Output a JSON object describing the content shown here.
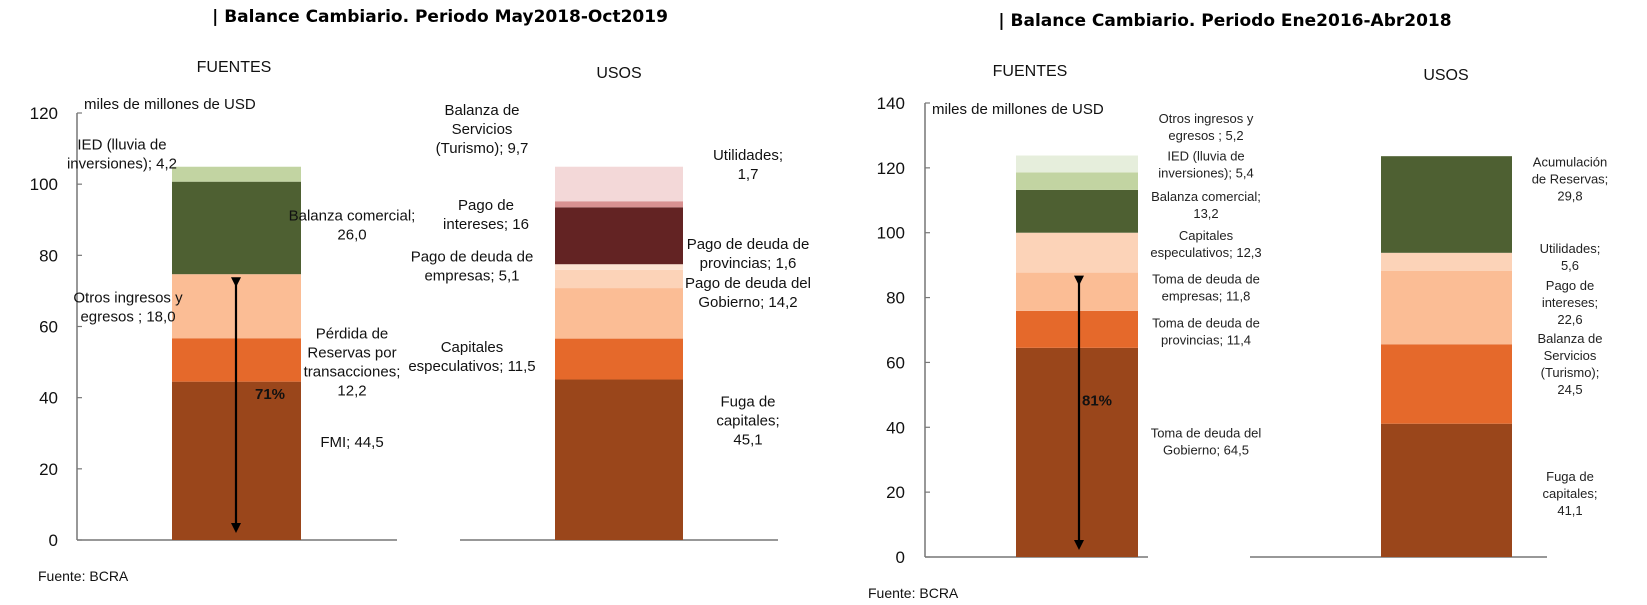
{
  "chart_data": [
    {
      "type": "bar",
      "stacked": true,
      "title": "| Balance Cambiario. Periodo May2018-Oct2019",
      "ylabel": "miles de millones de USD",
      "ylim": [
        0,
        120
      ],
      "yticks": [
        "0",
        "20",
        "40",
        "60",
        "80",
        "100",
        "120"
      ],
      "source": "Fuente: BCRA",
      "bars": [
        {
          "name": "FUENTES",
          "arrow_annotation": "71%",
          "segments": [
            {
              "label": [
                "FMI; 44,5"
              ],
              "value": 44.5,
              "color": "#9a461b"
            },
            {
              "label": [
                "Pérdida de",
                "Reservas por",
                "transacciones;",
                "12,2"
              ],
              "value": 12.2,
              "color": "#e5692b"
            },
            {
              "label": [
                "Otros ingresos y",
                "egresos ; 18,0"
              ],
              "value": 18.0,
              "color": "#fbbd95"
            },
            {
              "label": [
                "Balanza comercial;",
                "26,0"
              ],
              "value": 26.0,
              "color": "#4e6032"
            },
            {
              "label": [
                "IED (lluvia de",
                "inversiones); 4,2"
              ],
              "value": 4.2,
              "color": "#c2d4a2"
            }
          ]
        },
        {
          "name": "USOS",
          "segments": [
            {
              "label": [
                "Fuga de",
                "capitales;",
                "45,1"
              ],
              "value": 45.1,
              "color": "#9a461b"
            },
            {
              "label": [
                "Capitales",
                "especulativos; 11,5"
              ],
              "value": 11.5,
              "color": "#e5692b"
            },
            {
              "label": [
                "Pago de deuda del",
                "Gobierno; 14,2"
              ],
              "value": 14.2,
              "color": "#fbbd95"
            },
            {
              "label": [
                "Pago de deuda de",
                "empresas; 5,1"
              ],
              "value": 5.1,
              "color": "#fcd3b8"
            },
            {
              "label": [
                "Pago de deuda de",
                "provincias; 1,6"
              ],
              "value": 1.6,
              "color": "#fde3d2"
            },
            {
              "label": [
                "Pago de",
                "intereses; 16"
              ],
              "value": 16,
              "color": "#632323"
            },
            {
              "label": [
                "Utilidades;",
                "1,7"
              ],
              "value": 1.7,
              "color": "#d89191"
            },
            {
              "label": [
                "Balanza de",
                "Servicios",
                "(Turismo); 9,7"
              ],
              "value": 9.7,
              "color": "#f3d8d8"
            }
          ]
        }
      ]
    },
    {
      "type": "bar",
      "stacked": true,
      "title": "| Balance Cambiario. Periodo Ene2016-Abr2018",
      "ylabel": "miles de millones de USD",
      "ylim": [
        0,
        140
      ],
      "yticks": [
        "0",
        "20",
        "40",
        "60",
        "80",
        "100",
        "120",
        "140"
      ],
      "source": "Fuente: BCRA",
      "bars": [
        {
          "name": "FUENTES",
          "arrow_annotation": "81%",
          "segments": [
            {
              "label": [
                "Toma de deuda del",
                "Gobierno; 64,5"
              ],
              "value": 64.5,
              "color": "#9a461b"
            },
            {
              "label": [
                "Toma de deuda de",
                "provincias; 11,4"
              ],
              "value": 11.4,
              "color": "#e5692b"
            },
            {
              "label": [
                "Toma de deuda de",
                "empresas; 11,8"
              ],
              "value": 11.8,
              "color": "#fbbd95"
            },
            {
              "label": [
                "Capitales",
                "especulativos; 12,3"
              ],
              "value": 12.3,
              "color": "#fcd3b8"
            },
            {
              "label": [
                "Balanza comercial;",
                "13,2"
              ],
              "value": 13.2,
              "color": "#4e6032"
            },
            {
              "label": [
                "IED (lluvia de",
                "inversiones); 5,4"
              ],
              "value": 5.4,
              "color": "#c2d4a2"
            },
            {
              "label": [
                "Otros ingresos y",
                "egresos ; 5,2"
              ],
              "value": 5.2,
              "color": "#e6eedc"
            }
          ]
        },
        {
          "name": "USOS",
          "segments": [
            {
              "label": [
                "Fuga de",
                "capitales;",
                "41,1"
              ],
              "value": 41.1,
              "color": "#9a461b"
            },
            {
              "label": [
                "Balanza de",
                "Servicios",
                "(Turismo);",
                "24,5"
              ],
              "value": 24.5,
              "color": "#e5692b"
            },
            {
              "label": [
                "Pago de",
                "intereses;",
                "22,6"
              ],
              "value": 22.6,
              "color": "#fbbd95"
            },
            {
              "label": [
                "Utilidades;",
                "5,6"
              ],
              "value": 5.6,
              "color": "#fcd3b8"
            },
            {
              "label": [
                "Acumulación",
                "de Reservas;",
                "29,8"
              ],
              "value": 29.8,
              "color": "#4e6032"
            }
          ]
        }
      ]
    }
  ]
}
